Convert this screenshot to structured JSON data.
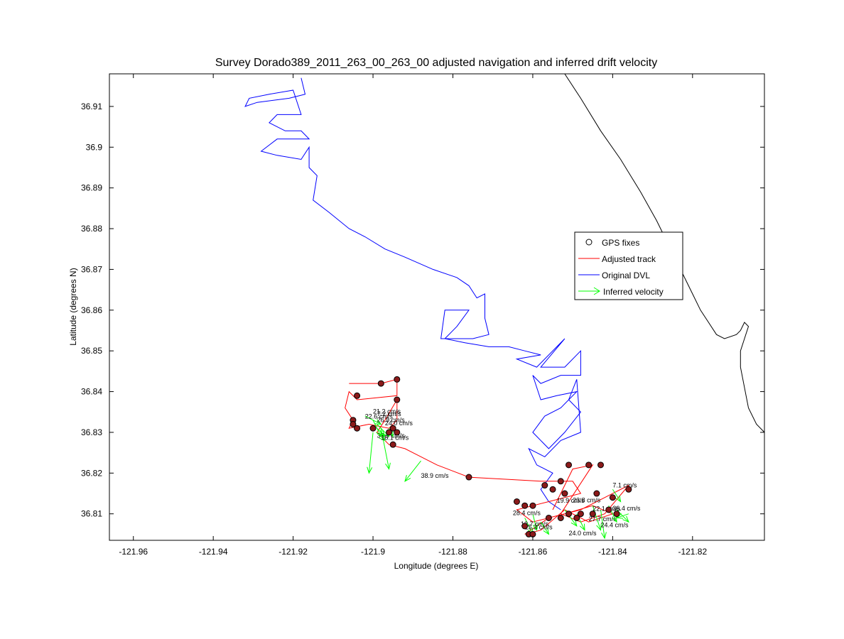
{
  "chart_data": {
    "type": "line",
    "title": "Survey Dorado389_2011_263_00_263_00 adjusted navigation and inferred drift velocity",
    "xlabel": "Longitude (degrees E)",
    "ylabel": "Latitude (degrees N)",
    "xlim": [
      -121.966,
      -121.802
    ],
    "ylim": [
      36.8035,
      36.918
    ],
    "xticks": [
      -121.96,
      -121.94,
      -121.92,
      -121.9,
      -121.88,
      -121.86,
      -121.84,
      -121.82
    ],
    "yticks": [
      36.81,
      36.82,
      36.83,
      36.84,
      36.85,
      36.86,
      36.87,
      36.88,
      36.89,
      36.9,
      36.91
    ],
    "legend": {
      "placement": "right",
      "entries": [
        {
          "label": "GPS fixes",
          "color": "#000000",
          "marker": "circle"
        },
        {
          "label": "Adjusted track",
          "color": "#ff0000",
          "marker": "line"
        },
        {
          "label": "Original DVL",
          "color": "#0000ff",
          "marker": "line"
        },
        {
          "label": "Inferred velocity",
          "color": "#00ff00",
          "marker": "arrow"
        }
      ]
    },
    "coastline": {
      "name": "",
      "color": "#000000",
      "points": [
        [
          -121.852,
          36.918
        ],
        [
          -121.848,
          36.912
        ],
        [
          -121.843,
          36.904
        ],
        [
          -121.838,
          36.897
        ],
        [
          -121.833,
          36.889
        ],
        [
          -121.829,
          36.882
        ],
        [
          -121.826,
          36.876
        ],
        [
          -121.823,
          36.87
        ],
        [
          -121.82,
          36.864
        ],
        [
          -121.818,
          36.86
        ],
        [
          -121.816,
          36.857
        ],
        [
          -121.814,
          36.854
        ],
        [
          -121.812,
          36.853
        ],
        [
          -121.809,
          36.854
        ],
        [
          -121.808,
          36.855
        ],
        [
          -121.807,
          36.857
        ],
        [
          -121.806,
          36.856
        ],
        [
          -121.807,
          36.853
        ],
        [
          -121.808,
          36.85
        ],
        [
          -121.808,
          36.846
        ],
        [
          -121.807,
          36.841
        ],
        [
          -121.806,
          36.836
        ],
        [
          -121.804,
          36.832
        ],
        [
          -121.802,
          36.83
        ]
      ]
    },
    "series": [
      {
        "name": "Original DVL",
        "color": "#0000ff",
        "points": [
          [
            -121.918,
            36.917
          ],
          [
            -121.917,
            36.913
          ],
          [
            -121.921,
            36.912
          ],
          [
            -121.929,
            36.911
          ],
          [
            -121.932,
            36.91
          ],
          [
            -121.931,
            36.912
          ],
          [
            -121.926,
            36.913
          ],
          [
            -121.92,
            36.914
          ],
          [
            -121.918,
            36.908
          ],
          [
            -121.924,
            36.908
          ],
          [
            -121.926,
            36.906
          ],
          [
            -121.922,
            36.904
          ],
          [
            -121.918,
            36.904
          ],
          [
            -121.916,
            36.902
          ],
          [
            -121.924,
            36.902
          ],
          [
            -121.928,
            36.899
          ],
          [
            -121.924,
            36.898
          ],
          [
            -121.918,
            36.897
          ],
          [
            -121.916,
            36.9
          ],
          [
            -121.916,
            36.895
          ],
          [
            -121.914,
            36.893
          ],
          [
            -121.915,
            36.887
          ],
          [
            -121.911,
            36.884
          ],
          [
            -121.906,
            36.88
          ],
          [
            -121.902,
            36.878
          ],
          [
            -121.897,
            36.875
          ],
          [
            -121.892,
            36.873
          ],
          [
            -121.885,
            36.87
          ],
          [
            -121.879,
            36.868
          ],
          [
            -121.876,
            36.866
          ],
          [
            -121.874,
            36.863
          ],
          [
            -121.872,
            36.864
          ],
          [
            -121.872,
            36.858
          ],
          [
            -121.871,
            36.854
          ],
          [
            -121.875,
            36.853
          ],
          [
            -121.883,
            36.853
          ],
          [
            -121.882,
            36.86
          ],
          [
            -121.876,
            36.86
          ],
          [
            -121.879,
            36.856
          ],
          [
            -121.882,
            36.853
          ],
          [
            -121.877,
            36.852
          ],
          [
            -121.871,
            36.851
          ],
          [
            -121.866,
            36.851
          ],
          [
            -121.862,
            36.85
          ],
          [
            -121.858,
            36.849
          ],
          [
            -121.864,
            36.848
          ],
          [
            -121.859,
            36.846
          ],
          [
            -121.852,
            36.853
          ],
          [
            -121.858,
            36.846
          ],
          [
            -121.852,
            36.846
          ],
          [
            -121.848,
            36.85
          ],
          [
            -121.848,
            36.844
          ],
          [
            -121.853,
            36.844
          ],
          [
            -121.858,
            36.842
          ],
          [
            -121.86,
            36.844
          ],
          [
            -121.858,
            36.838
          ],
          [
            -121.854,
            36.839
          ],
          [
            -121.849,
            36.84
          ],
          [
            -121.853,
            36.836
          ],
          [
            -121.857,
            36.834
          ],
          [
            -121.86,
            36.83
          ],
          [
            -121.856,
            36.826
          ],
          [
            -121.852,
            36.83
          ],
          [
            -121.848,
            36.835
          ],
          [
            -121.851,
            36.838
          ],
          [
            -121.849,
            36.843
          ],
          [
            -121.848,
            36.83
          ],
          [
            -121.853,
            36.828
          ],
          [
            -121.857,
            36.824
          ],
          [
            -121.861,
            36.826
          ],
          [
            -121.859,
            36.822
          ],
          [
            -121.855,
            36.82
          ],
          [
            -121.858,
            36.816
          ],
          [
            -121.856,
            36.813
          ],
          [
            -121.853,
            36.811
          ]
        ]
      },
      {
        "name": "Adjusted track",
        "color": "#ff0000",
        "points": [
          [
            -121.906,
            36.842
          ],
          [
            -121.898,
            36.842
          ],
          [
            -121.894,
            36.843
          ],
          [
            -121.894,
            36.839
          ],
          [
            -121.904,
            36.838
          ],
          [
            -121.906,
            36.84
          ],
          [
            -121.907,
            36.836
          ],
          [
            -121.905,
            36.833
          ],
          [
            -121.906,
            36.831
          ],
          [
            -121.901,
            36.832
          ],
          [
            -121.896,
            36.831
          ],
          [
            -121.894,
            36.833
          ],
          [
            -121.894,
            36.838
          ],
          [
            -121.897,
            36.833
          ],
          [
            -121.899,
            36.83
          ],
          [
            -121.896,
            36.827
          ],
          [
            -121.892,
            36.826
          ],
          [
            -121.884,
            36.822
          ],
          [
            -121.876,
            36.819
          ],
          [
            -121.858,
            36.818
          ],
          [
            -121.85,
            36.818
          ],
          [
            -121.848,
            36.815
          ],
          [
            -121.856,
            36.813
          ],
          [
            -121.864,
            36.811
          ],
          [
            -121.86,
            36.808
          ],
          [
            -121.852,
            36.81
          ],
          [
            -121.845,
            36.812
          ],
          [
            -121.84,
            36.81
          ],
          [
            -121.846,
            36.808
          ],
          [
            -121.852,
            36.811
          ],
          [
            -121.858,
            36.806
          ],
          [
            -121.862,
            36.805
          ],
          [
            -121.856,
            36.809
          ],
          [
            -121.848,
            36.811
          ],
          [
            -121.842,
            36.814
          ],
          [
            -121.836,
            36.817
          ],
          [
            -121.842,
            36.81
          ],
          [
            -121.848,
            36.808
          ],
          [
            -121.853,
            36.81
          ],
          [
            -121.845,
            36.822
          ],
          [
            -121.85,
            36.821
          ],
          [
            -121.855,
            36.811
          ]
        ]
      }
    ],
    "gps_fixes": [
      [
        -121.898,
        36.842
      ],
      [
        -121.894,
        36.843
      ],
      [
        -121.904,
        36.839
      ],
      [
        -121.894,
        36.838
      ],
      [
        -121.905,
        36.833
      ],
      [
        -121.905,
        36.832
      ],
      [
        -121.904,
        36.831
      ],
      [
        -121.9,
        36.831
      ],
      [
        -121.896,
        36.83
      ],
      [
        -121.895,
        36.831
      ],
      [
        -121.894,
        36.83
      ],
      [
        -121.895,
        36.827
      ],
      [
        -121.876,
        36.819
      ],
      [
        -121.864,
        36.813
      ],
      [
        -121.862,
        36.812
      ],
      [
        -121.86,
        36.812
      ],
      [
        -121.857,
        36.817
      ],
      [
        -121.855,
        36.816
      ],
      [
        -121.853,
        36.818
      ],
      [
        -121.852,
        36.815
      ],
      [
        -121.851,
        36.822
      ],
      [
        -121.846,
        36.822
      ],
      [
        -121.843,
        36.822
      ],
      [
        -121.844,
        36.815
      ],
      [
        -121.84,
        36.814
      ],
      [
        -121.836,
        36.816
      ],
      [
        -121.841,
        36.811
      ],
      [
        -121.839,
        36.81
      ],
      [
        -121.845,
        36.81
      ],
      [
        -121.848,
        36.81
      ],
      [
        -121.851,
        36.81
      ],
      [
        -121.853,
        36.809
      ],
      [
        -121.856,
        36.809
      ],
      [
        -121.862,
        36.807
      ],
      [
        -121.861,
        36.805
      ],
      [
        -121.86,
        36.805
      ],
      [
        -121.849,
        36.809
      ]
    ],
    "velocities": [
      {
        "x": -121.898,
        "y": 36.831,
        "dx": 0.002,
        "dy": -0.01,
        "label": "38.9 cm/s",
        "lx": -121.899,
        "ly": 36.8287
      },
      {
        "x": -121.9,
        "y": 36.83,
        "dx": -0.001,
        "dy": -0.01,
        "label": "",
        "lx": null,
        "ly": null
      },
      {
        "x": -121.888,
        "y": 36.823,
        "dx": -0.004,
        "dy": -0.005,
        "label": "38.9 cm/s",
        "lx": -121.888,
        "ly": 36.8188
      },
      {
        "x": -121.902,
        "y": 36.834,
        "dx": 0.004,
        "dy": -0.002,
        "label": "22.6 cm/s",
        "lx": -121.902,
        "ly": 36.8334
      },
      {
        "x": -121.9,
        "y": 36.833,
        "dx": 0.002,
        "dy": -0.004,
        "label": "7.2 cm/s",
        "lx": -121.899,
        "ly": 36.834
      },
      {
        "x": -121.899,
        "y": 36.832,
        "dx": 0.003,
        "dy": -0.003,
        "label": "21.2 cm/s",
        "lx": -121.9,
        "ly": 36.8346
      },
      {
        "x": -121.899,
        "y": 36.831,
        "dx": 0.002,
        "dy": -0.002,
        "label": "26.9 cm/s",
        "lx": -121.899,
        "ly": 36.8325
      },
      {
        "x": -121.896,
        "y": 36.831,
        "dx": 0.001,
        "dy": -0.002,
        "label": "24.0 cm/s",
        "lx": -121.897,
        "ly": 36.8317
      },
      {
        "x": -121.898,
        "y": 36.829,
        "dx": 0.001,
        "dy": -0.001,
        "label": "18.1 cm/s",
        "lx": -121.898,
        "ly": 36.8282
      },
      {
        "x": -121.86,
        "y": 36.81,
        "dx": 0.001,
        "dy": -0.004,
        "label": "28.4 cm/s",
        "lx": -121.865,
        "ly": 36.8097
      },
      {
        "x": -121.862,
        "y": 36.809,
        "dx": 0.002,
        "dy": -0.004,
        "label": "12.7 cm/s",
        "lx": -121.863,
        "ly": 36.807
      },
      {
        "x": -121.858,
        "y": 36.808,
        "dx": 0.002,
        "dy": -0.003,
        "label": "25.3 cm/s",
        "lx": -121.862,
        "ly": 36.8062
      },
      {
        "x": -121.852,
        "y": 36.811,
        "dx": 0.003,
        "dy": -0.004,
        "label": "19.9 cm/s",
        "lx": -121.854,
        "ly": 36.8127
      },
      {
        "x": -121.849,
        "y": 36.81,
        "dx": 0.002,
        "dy": -0.004,
        "label": "23.8 cm/s",
        "lx": -121.85,
        "ly": 36.8128
      },
      {
        "x": -121.845,
        "y": 36.812,
        "dx": 0.002,
        "dy": -0.006,
        "label": "24.0 cm/s",
        "lx": -121.851,
        "ly": 36.8047
      },
      {
        "x": -121.843,
        "y": 36.811,
        "dx": 0.001,
        "dy": -0.007,
        "label": "27.7 cm/s",
        "lx": -121.846,
        "ly": 36.8082
      },
      {
        "x": -121.841,
        "y": 36.812,
        "dx": 0.002,
        "dy": -0.004,
        "label": "22.1 cm/s",
        "lx": -121.845,
        "ly": 36.8107
      },
      {
        "x": -121.839,
        "y": 36.811,
        "dx": 0.003,
        "dy": -0.003,
        "label": "36.4 cm/s",
        "lx": -121.84,
        "ly": 36.8108
      },
      {
        "x": -121.836,
        "y": 36.81,
        "dx": -0.003,
        "dy": -0.001,
        "label": "24.4 cm/s",
        "lx": -121.843,
        "ly": 36.8067
      },
      {
        "x": -121.84,
        "y": 36.816,
        "dx": 0.002,
        "dy": -0.003,
        "label": "7.1 cm/s",
        "lx": -121.84,
        "ly": 36.8165
      }
    ]
  }
}
